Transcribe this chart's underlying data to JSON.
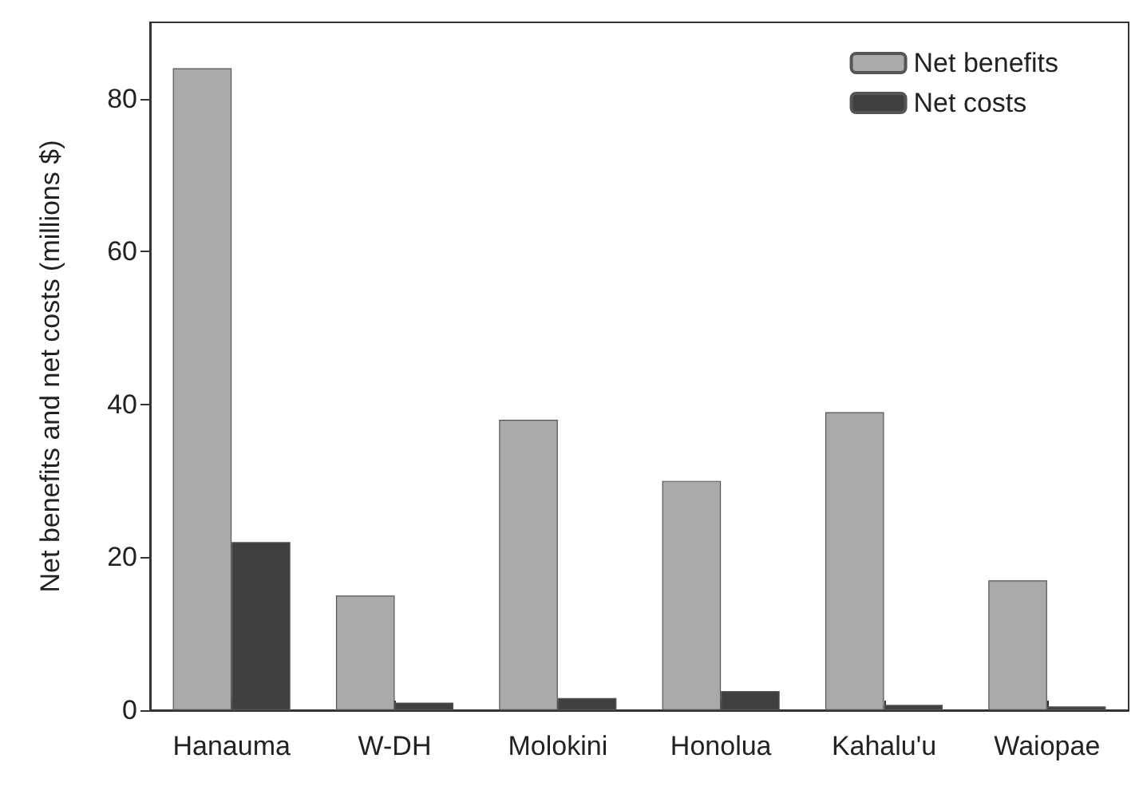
{
  "chart_data": {
    "type": "bar",
    "ylabel": "Net benefits and net costs (millions $)",
    "categories": [
      "Hanauma",
      "W-DH",
      "Molokini",
      "Honolua",
      "Kahalu'u",
      "Waiopae"
    ],
    "series": [
      {
        "name": "Net benefits",
        "color": "#aaaaaa",
        "values": [
          84,
          15,
          38,
          30,
          39,
          17
        ]
      },
      {
        "name": "Net costs",
        "color": "#404040",
        "values": [
          22,
          1,
          1.6,
          2.5,
          0.7,
          0.5
        ]
      }
    ],
    "ylim": [
      0,
      90
    ],
    "yticks": [
      0,
      20,
      40,
      60,
      80
    ],
    "grid": false,
    "legend": "top right"
  }
}
